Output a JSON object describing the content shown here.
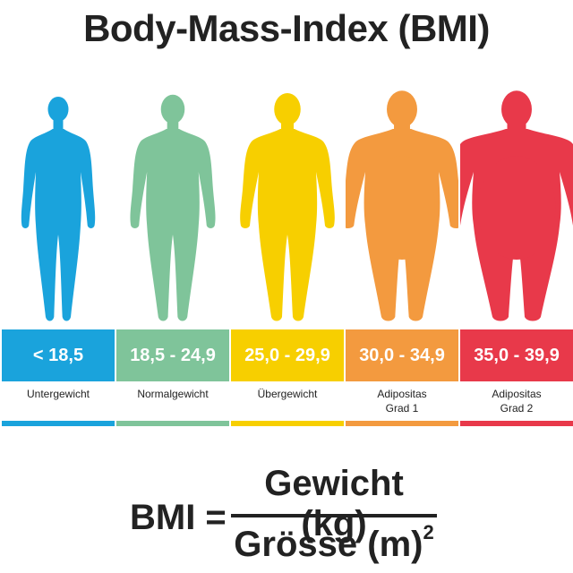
{
  "title": "Body-Mass-Index (BMI)",
  "categories": [
    {
      "range": "< 18,5",
      "label_lines": [
        "Untergewicht"
      ],
      "color": "#1aa3dc",
      "figure": "thin-figure-icon"
    },
    {
      "range": "18,5 - 24,9",
      "label_lines": [
        "Normalgewicht"
      ],
      "color": "#7fc49a",
      "figure": "normal-figure-icon"
    },
    {
      "range": "25,0 - 29,9",
      "label_lines": [
        "Übergewicht"
      ],
      "color": "#f7cf00",
      "figure": "overweight-figure-icon"
    },
    {
      "range": "30,0 - 34,9",
      "label_lines": [
        "Adipositas",
        "Grad 1"
      ],
      "color": "#f39a3f",
      "figure": "obese1-figure-icon"
    },
    {
      "range": "35,0 - 39,9",
      "label_lines": [
        "Adipositas",
        "Grad 2"
      ],
      "color": "#e8394a",
      "figure": "obese2-figure-icon"
    }
  ],
  "formula": {
    "lhs": "BMI =",
    "numerator": "Gewicht (kg)",
    "denominator": "Grösse (m)",
    "exponent": "2"
  }
}
